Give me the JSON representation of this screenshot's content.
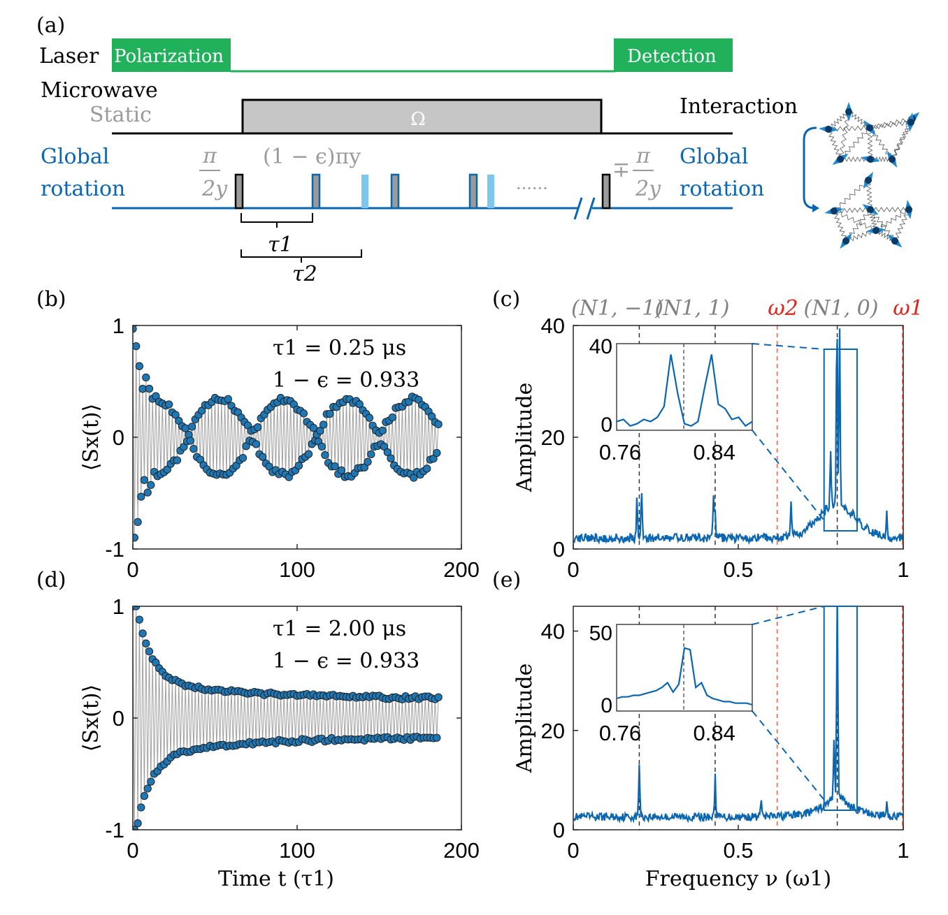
{
  "colors": {
    "laser": "#20b15a",
    "blue": "#0a66b0",
    "lightblue": "#7fc6ef",
    "gray": "#9a9a9a",
    "darkgray": "#808080",
    "red": "#e2231a",
    "marker": "#1f77b4"
  },
  "panel_a": {
    "label": "(a)",
    "laser_label": "Laser",
    "polarization": "Polarization",
    "detection": "Detection",
    "microwave": "Microwave",
    "static": "Static",
    "omega": "Ω",
    "global_rotation_left": [
      "Global",
      "rotation"
    ],
    "global_rotation_right": [
      "Global",
      "rotation"
    ],
    "interaction": "Interaction",
    "pi_num": "π",
    "two_y": "2y",
    "pulse_label": "(1 − ϵ)πy",
    "minus_plus": "∓",
    "dots": "······",
    "tau1": "τ1",
    "tau2": "τ2"
  },
  "chart_data": [
    {
      "id": "b",
      "type": "scatter",
      "label": "(b)",
      "ylabel": "⟨Sx(t)⟩",
      "xlabel": "",
      "xlim": [
        0,
        200
      ],
      "ylim": [
        -1,
        1
      ],
      "xticks": [
        "0",
        "100",
        "200"
      ],
      "yticks": [
        "-1",
        "0",
        "1"
      ],
      "annotations": [
        "τ1 = 0.25 μs",
        "1 − ϵ = 0.933"
      ],
      "model": "beating",
      "n_points": 187
    },
    {
      "id": "c",
      "type": "line",
      "label": "(c)",
      "ylabel": "Amplitude",
      "xlabel": "",
      "xlim": [
        0,
        1
      ],
      "ylim": [
        0,
        40
      ],
      "xticks": [
        "0",
        "0.5",
        "1"
      ],
      "yticks": [
        "0",
        "20",
        "40"
      ],
      "peaks": [
        [
          0.193,
          7
        ],
        [
          0.207,
          9
        ],
        [
          0.425,
          7
        ],
        [
          0.43,
          5.5
        ],
        [
          0.66,
          7
        ],
        [
          0.78,
          10
        ],
        [
          0.799,
          35
        ],
        [
          0.807,
          33
        ],
        [
          0.95,
          5
        ]
      ],
      "top_labels": [
        "(N1, −1)",
        "(N1, 1)",
        "ω2",
        "(N1, 0)",
        "ω1"
      ],
      "vlines_gray": [
        0.2,
        0.43,
        0.8
      ],
      "vlines_red": [
        0.618,
        1.0
      ],
      "inset": {
        "xticks": [
          "0.76",
          "0.84"
        ],
        "yticks": [
          "0",
          "40"
        ],
        "values": [
          4,
          5,
          2,
          3,
          5,
          4,
          6,
          11,
          35,
          17,
          3,
          2,
          4,
          20,
          35,
          12,
          10,
          5,
          6,
          2,
          4
        ]
      }
    },
    {
      "id": "d",
      "type": "scatter",
      "label": "(d)",
      "ylabel": "⟨Sx(t)⟩",
      "xlabel": "Time t (τ1)",
      "xlim": [
        0,
        200
      ],
      "ylim": [
        -1,
        1
      ],
      "xticks": [
        "0",
        "100",
        "200"
      ],
      "yticks": [
        "-1",
        "0",
        "1"
      ],
      "annotations": [
        "τ1 = 2.00 μs",
        "1 − ϵ = 0.933"
      ],
      "model": "decay",
      "n_points": 187
    },
    {
      "id": "e",
      "type": "line",
      "label": "(e)",
      "ylabel": "Amplitude",
      "xlabel": "Frequency ν (ω1)",
      "xlim": [
        0,
        1
      ],
      "ylim": [
        0,
        45
      ],
      "xticks": [
        "0",
        "0.5",
        "1"
      ],
      "yticks": [
        "0",
        "20",
        "40"
      ],
      "peaks": [
        [
          0.2,
          11
        ],
        [
          0.43,
          8.5
        ],
        [
          0.57,
          4
        ],
        [
          0.8,
          45
        ],
        [
          0.79,
          12
        ],
        [
          0.95,
          3
        ]
      ],
      "vlines_gray": [
        0.2,
        0.43,
        0.8
      ],
      "vlines_red": [
        0.618,
        1.0
      ],
      "inset": {
        "xticks": [
          "0.76",
          "0.84"
        ],
        "yticks": [
          "0",
          "50"
        ],
        "values": [
          8,
          9,
          9,
          10,
          10,
          11,
          12,
          13,
          15,
          18,
          12,
          17,
          40,
          39,
          15,
          18,
          10,
          8,
          7,
          6,
          6,
          5,
          5,
          5,
          4
        ]
      }
    }
  ]
}
